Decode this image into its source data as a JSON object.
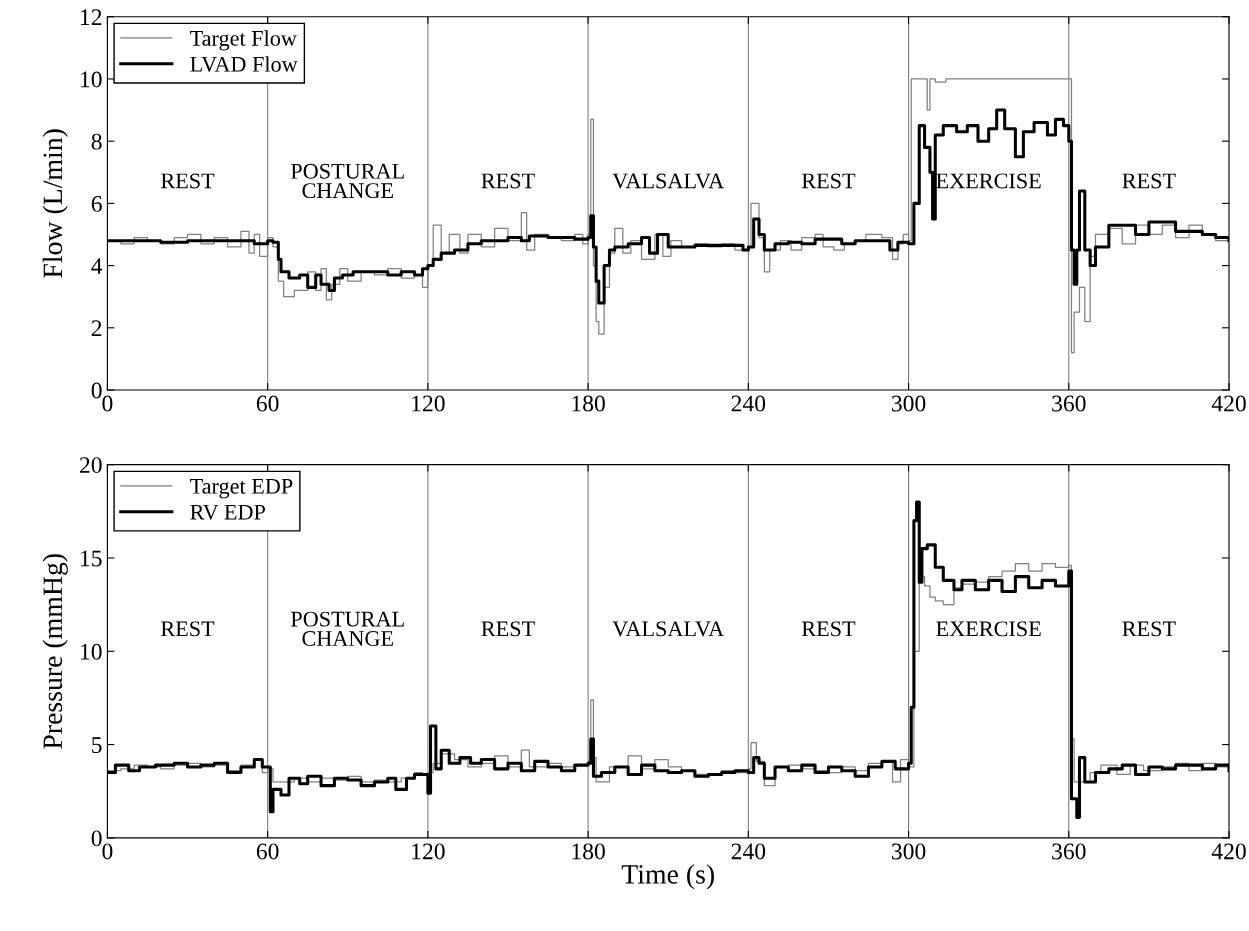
{
  "chart_data": [
    {
      "type": "step",
      "ylabel": "Flow (L/min)",
      "xlim": [
        0,
        420
      ],
      "xticks": [
        0,
        60,
        120,
        180,
        240,
        300,
        360,
        420
      ],
      "ylim": [
        0,
        12
      ],
      "yticks": [
        0,
        2,
        4,
        6,
        8,
        10,
        12
      ],
      "grid": false,
      "legend": "top left",
      "series": [
        {
          "name": "Target Flow",
          "color": "#808080",
          "x": [
            0,
            5,
            10,
            15,
            20,
            25,
            30,
            35,
            40,
            45,
            50,
            53,
            55,
            57,
            60,
            62,
            64,
            66,
            70,
            75,
            78,
            80,
            82,
            84,
            87,
            90,
            95,
            100,
            105,
            110,
            115,
            118,
            120,
            122,
            125,
            128,
            132,
            135,
            140,
            145,
            150,
            155,
            157,
            160,
            165,
            170,
            175,
            178,
            180,
            181,
            182,
            183,
            184,
            186,
            188,
            190,
            193,
            196,
            200,
            205,
            208,
            211,
            215,
            220,
            225,
            230,
            235,
            240,
            241,
            244,
            246,
            248,
            252,
            256,
            260,
            265,
            268,
            272,
            276,
            280,
            284,
            290,
            294,
            296,
            298,
            300,
            301,
            306,
            307,
            308,
            310,
            314,
            360,
            361,
            362,
            364,
            366,
            368,
            370,
            375,
            380,
            385,
            390,
            395,
            400,
            405,
            410,
            415,
            420
          ],
          "values": [
            4.8,
            4.7,
            4.9,
            4.8,
            4.7,
            4.9,
            5.0,
            4.7,
            4.9,
            4.6,
            5.1,
            4.4,
            5.0,
            4.3,
            4.9,
            4.6,
            3.5,
            3.0,
            3.2,
            3.8,
            3.2,
            3.9,
            2.9,
            3.4,
            3.9,
            3.5,
            3.8,
            3.7,
            3.9,
            3.6,
            3.7,
            3.3,
            4.0,
            5.3,
            4.4,
            5.0,
            4.4,
            5.0,
            4.6,
            5.2,
            4.8,
            5.7,
            4.5,
            5.0,
            4.9,
            4.8,
            5.0,
            4.7,
            5.0,
            8.7,
            4.0,
            2.2,
            1.8,
            3.3,
            4.4,
            5.2,
            4.4,
            4.8,
            4.2,
            5.0,
            4.3,
            4.8,
            4.6,
            4.7,
            4.6,
            4.7,
            4.5,
            4.6,
            6.0,
            4.9,
            3.8,
            4.5,
            4.8,
            4.5,
            4.9,
            5.0,
            4.6,
            4.5,
            4.7,
            4.8,
            5.0,
            4.9,
            4.2,
            4.7,
            5.0,
            4.8,
            10.0,
            10.0,
            9.0,
            10.0,
            9.9,
            10.0,
            10.0,
            1.2,
            2.5,
            3.3,
            2.2,
            4.3,
            5.0,
            5.2,
            4.7,
            5.3,
            5.0,
            5.3,
            4.9,
            5.3,
            5.0,
            4.8,
            4.8
          ]
        },
        {
          "name": "LVAD Flow",
          "color": "#000000",
          "x": [
            0,
            10,
            20,
            30,
            40,
            50,
            55,
            60,
            62,
            64,
            65,
            68,
            72,
            75,
            78,
            80,
            83,
            85,
            88,
            92,
            100,
            105,
            110,
            115,
            118,
            120,
            122,
            125,
            130,
            135,
            140,
            150,
            155,
            158,
            165,
            175,
            180,
            181,
            182,
            183,
            184,
            186,
            188,
            190,
            195,
            200,
            203,
            206,
            210,
            220,
            230,
            238,
            240,
            242,
            244,
            246,
            250,
            255,
            260,
            265,
            270,
            275,
            280,
            290,
            293,
            296,
            300,
            302,
            304,
            306,
            308,
            309,
            310,
            313,
            318,
            322,
            326,
            330,
            333,
            336,
            340,
            343,
            347,
            352,
            355,
            358,
            360,
            361,
            362,
            363,
            364,
            366,
            368,
            370,
            375,
            380,
            385,
            390,
            400,
            410,
            415,
            420
          ],
          "values": [
            4.8,
            4.8,
            4.75,
            4.8,
            4.8,
            4.8,
            4.7,
            4.8,
            4.75,
            4.2,
            3.8,
            3.6,
            3.7,
            3.3,
            3.7,
            3.4,
            3.2,
            3.6,
            3.7,
            3.8,
            3.8,
            3.7,
            3.8,
            3.7,
            3.9,
            4.0,
            4.2,
            4.4,
            4.5,
            4.7,
            4.8,
            4.9,
            4.8,
            4.95,
            4.9,
            4.85,
            4.9,
            5.6,
            4.6,
            3.5,
            2.8,
            4.0,
            4.5,
            4.6,
            4.7,
            4.9,
            4.4,
            5.0,
            4.6,
            4.65,
            4.65,
            4.5,
            4.6,
            5.5,
            5.0,
            4.5,
            4.7,
            4.75,
            4.7,
            4.85,
            4.85,
            4.7,
            4.8,
            4.8,
            4.5,
            4.75,
            4.7,
            6.0,
            8.5,
            7.8,
            7.0,
            5.5,
            8.2,
            8.5,
            8.3,
            8.5,
            8.0,
            8.4,
            9.0,
            8.4,
            7.5,
            8.3,
            8.6,
            8.2,
            8.7,
            8.5,
            8.0,
            4.5,
            3.4,
            4.5,
            6.4,
            4.5,
            4.0,
            4.6,
            5.3,
            5.3,
            5.0,
            5.4,
            5.1,
            5.0,
            4.9,
            4.8
          ]
        }
      ],
      "ref_lines": [
        {
          "axis": "x",
          "value": 60,
          "color": "#808080"
        },
        {
          "axis": "x",
          "value": 120,
          "color": "#808080"
        },
        {
          "axis": "x",
          "value": 180,
          "color": "#808080"
        },
        {
          "axis": "x",
          "value": 240,
          "color": "#808080"
        },
        {
          "axis": "x",
          "value": 300,
          "color": "#808080"
        },
        {
          "axis": "x",
          "value": 360,
          "color": "#808080"
        }
      ],
      "annotations": [
        "REST",
        "POSTURAL\nCHANGE",
        "REST",
        "VALSALVA",
        "REST",
        "EXERCISE",
        "REST"
      ]
    },
    {
      "type": "step",
      "xlabel": "Time (s)",
      "ylabel": "Pressure (mmHg)",
      "xlim": [
        0,
        420
      ],
      "xticks": [
        0,
        60,
        120,
        180,
        240,
        300,
        360,
        420
      ],
      "ylim": [
        0,
        20
      ],
      "yticks": [
        0,
        5,
        10,
        15,
        20
      ],
      "grid": false,
      "legend": "top left",
      "series": [
        {
          "name": "Target EDP",
          "color": "#808080",
          "x": [
            0,
            5,
            10,
            15,
            20,
            25,
            30,
            35,
            40,
            45,
            50,
            55,
            58,
            60,
            62,
            65,
            70,
            75,
            80,
            85,
            90,
            95,
            100,
            105,
            110,
            115,
            118,
            120,
            122,
            125,
            130,
            135,
            140,
            145,
            150,
            155,
            158,
            165,
            170,
            175,
            180,
            181,
            182,
            183,
            188,
            195,
            200,
            205,
            210,
            215,
            220,
            225,
            230,
            235,
            240,
            241,
            243,
            246,
            250,
            255,
            260,
            265,
            270,
            275,
            280,
            285,
            290,
            294,
            297,
            300,
            302,
            304,
            306,
            308,
            310,
            313,
            317,
            320,
            325,
            330,
            335,
            340,
            345,
            350,
            355,
            360,
            361,
            362,
            365,
            368,
            372,
            378,
            383,
            388,
            395,
            400,
            405,
            410,
            415,
            420
          ],
          "values": [
            3.6,
            3.7,
            3.9,
            3.8,
            3.7,
            3.9,
            4.0,
            3.8,
            3.9,
            3.6,
            3.9,
            4.2,
            3.5,
            3.7,
            3.0,
            3.0,
            3.2,
            3.0,
            3.2,
            3.1,
            3.3,
            3.0,
            3.1,
            3.0,
            3.2,
            3.5,
            3.4,
            3.5,
            4.0,
            4.5,
            4.2,
            3.8,
            4.0,
            4.4,
            3.8,
            4.7,
            3.8,
            4.0,
            3.8,
            3.9,
            4.1,
            7.4,
            4.3,
            3.0,
            3.8,
            4.4,
            3.7,
            4.2,
            3.8,
            3.6,
            3.4,
            3.4,
            3.6,
            3.5,
            3.7,
            5.1,
            4.1,
            2.8,
            3.8,
            3.9,
            3.7,
            3.6,
            3.5,
            3.8,
            3.6,
            4.0,
            4.1,
            3.0,
            4.2,
            3.8,
            10.0,
            14.0,
            13.5,
            12.9,
            12.7,
            12.5,
            13.4,
            13.6,
            13.7,
            14.0,
            14.3,
            14.7,
            14.3,
            14.7,
            14.5,
            14.6,
            5.3,
            3.0,
            3.0,
            3.5,
            3.9,
            3.4,
            3.9,
            3.6,
            3.8,
            4.0,
            3.6,
            4.0,
            3.8,
            3.7
          ]
        },
        {
          "name": "RV EDP",
          "color": "#000000",
          "x": [
            0,
            3,
            8,
            12,
            18,
            25,
            30,
            35,
            40,
            45,
            50,
            55,
            58,
            60,
            61,
            62,
            65,
            68,
            72,
            75,
            80,
            85,
            90,
            95,
            100,
            105,
            108,
            112,
            115,
            120,
            121,
            123,
            125,
            128,
            132,
            136,
            140,
            145,
            150,
            155,
            160,
            165,
            170,
            175,
            180,
            181,
            182,
            185,
            190,
            195,
            200,
            205,
            210,
            215,
            220,
            225,
            230,
            235,
            240,
            242,
            244,
            246,
            250,
            255,
            260,
            265,
            270,
            275,
            280,
            285,
            290,
            295,
            300,
            301,
            302,
            303,
            304,
            305,
            307,
            310,
            313,
            317,
            320,
            325,
            330,
            335,
            340,
            345,
            350,
            355,
            360,
            361,
            363,
            364,
            366,
            370,
            375,
            380,
            385,
            390,
            395,
            400,
            410,
            415,
            420
          ],
          "values": [
            3.5,
            3.9,
            3.6,
            3.8,
            3.9,
            4.0,
            3.8,
            3.9,
            4.0,
            3.5,
            3.8,
            4.2,
            3.8,
            3.8,
            1.4,
            2.6,
            2.3,
            3.2,
            2.9,
            3.3,
            2.8,
            3.2,
            3.1,
            2.8,
            3.0,
            3.2,
            2.6,
            3.2,
            3.4,
            2.4,
            6.0,
            3.7,
            4.7,
            4.0,
            4.3,
            4.0,
            4.2,
            3.7,
            4.0,
            3.6,
            4.1,
            3.8,
            3.6,
            3.9,
            4.0,
            5.3,
            3.3,
            3.5,
            3.8,
            3.4,
            3.9,
            3.6,
            3.5,
            3.6,
            3.3,
            3.4,
            3.5,
            3.6,
            3.5,
            4.3,
            4.0,
            3.2,
            3.8,
            3.6,
            3.9,
            3.5,
            3.8,
            3.6,
            3.3,
            3.8,
            4.1,
            3.7,
            4.0,
            7.0,
            17.0,
            18.0,
            13.7,
            15.5,
            15.7,
            14.5,
            13.8,
            13.3,
            13.8,
            13.3,
            13.8,
            13.2,
            14.0,
            13.4,
            13.8,
            13.5,
            14.3,
            2.1,
            1.1,
            4.3,
            3.0,
            3.5,
            3.7,
            3.9,
            3.4,
            3.8,
            3.7,
            3.9,
            3.7,
            3.9,
            3.6
          ]
        }
      ],
      "ref_lines": [
        {
          "axis": "x",
          "value": 60,
          "color": "#808080"
        },
        {
          "axis": "x",
          "value": 120,
          "color": "#808080"
        },
        {
          "axis": "x",
          "value": 180,
          "color": "#808080"
        },
        {
          "axis": "x",
          "value": 240,
          "color": "#808080"
        },
        {
          "axis": "x",
          "value": 300,
          "color": "#808080"
        },
        {
          "axis": "x",
          "value": 360,
          "color": "#808080"
        }
      ],
      "annotations": [
        "REST",
        "POSTURAL\nCHANGE",
        "REST",
        "VALSALVA",
        "REST",
        "EXERCISE",
        "REST"
      ]
    }
  ]
}
